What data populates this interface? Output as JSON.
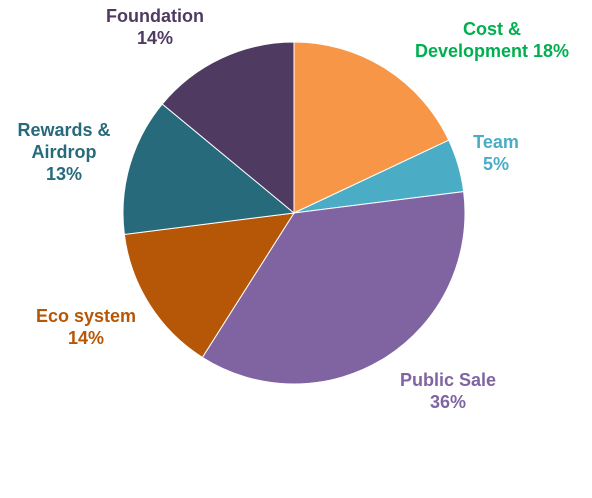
{
  "chart_data": {
    "type": "pie",
    "slices": [
      {
        "name_lines": [
          "Cost &",
          "Development"
        ],
        "percent_text": "18%",
        "value": 18,
        "color": "#F79646",
        "label_color": "#00B050"
      },
      {
        "name_lines": [
          "Team"
        ],
        "percent_text": "5%",
        "value": 5,
        "color": "#4BACC6",
        "label_color": "#4BACC6"
      },
      {
        "name_lines": [
          "Public Sale"
        ],
        "percent_text": "36%",
        "value": 36,
        "color": "#8064A2",
        "label_color": "#8064A2"
      },
      {
        "name_lines": [
          "Eco system"
        ],
        "percent_text": "14%",
        "value": 14,
        "color": "#B65708",
        "label_color": "#B65708"
      },
      {
        "name_lines": [
          "Rewards &",
          "Airdrop"
        ],
        "percent_text": "13%",
        "value": 13,
        "color": "#276A7C",
        "label_color": "#276A7C"
      },
      {
        "name_lines": [
          "Foundation"
        ],
        "percent_text": "14%",
        "value": 14,
        "color": "#4F3B62",
        "label_color": "#4F3B62"
      }
    ],
    "legend": "none"
  }
}
